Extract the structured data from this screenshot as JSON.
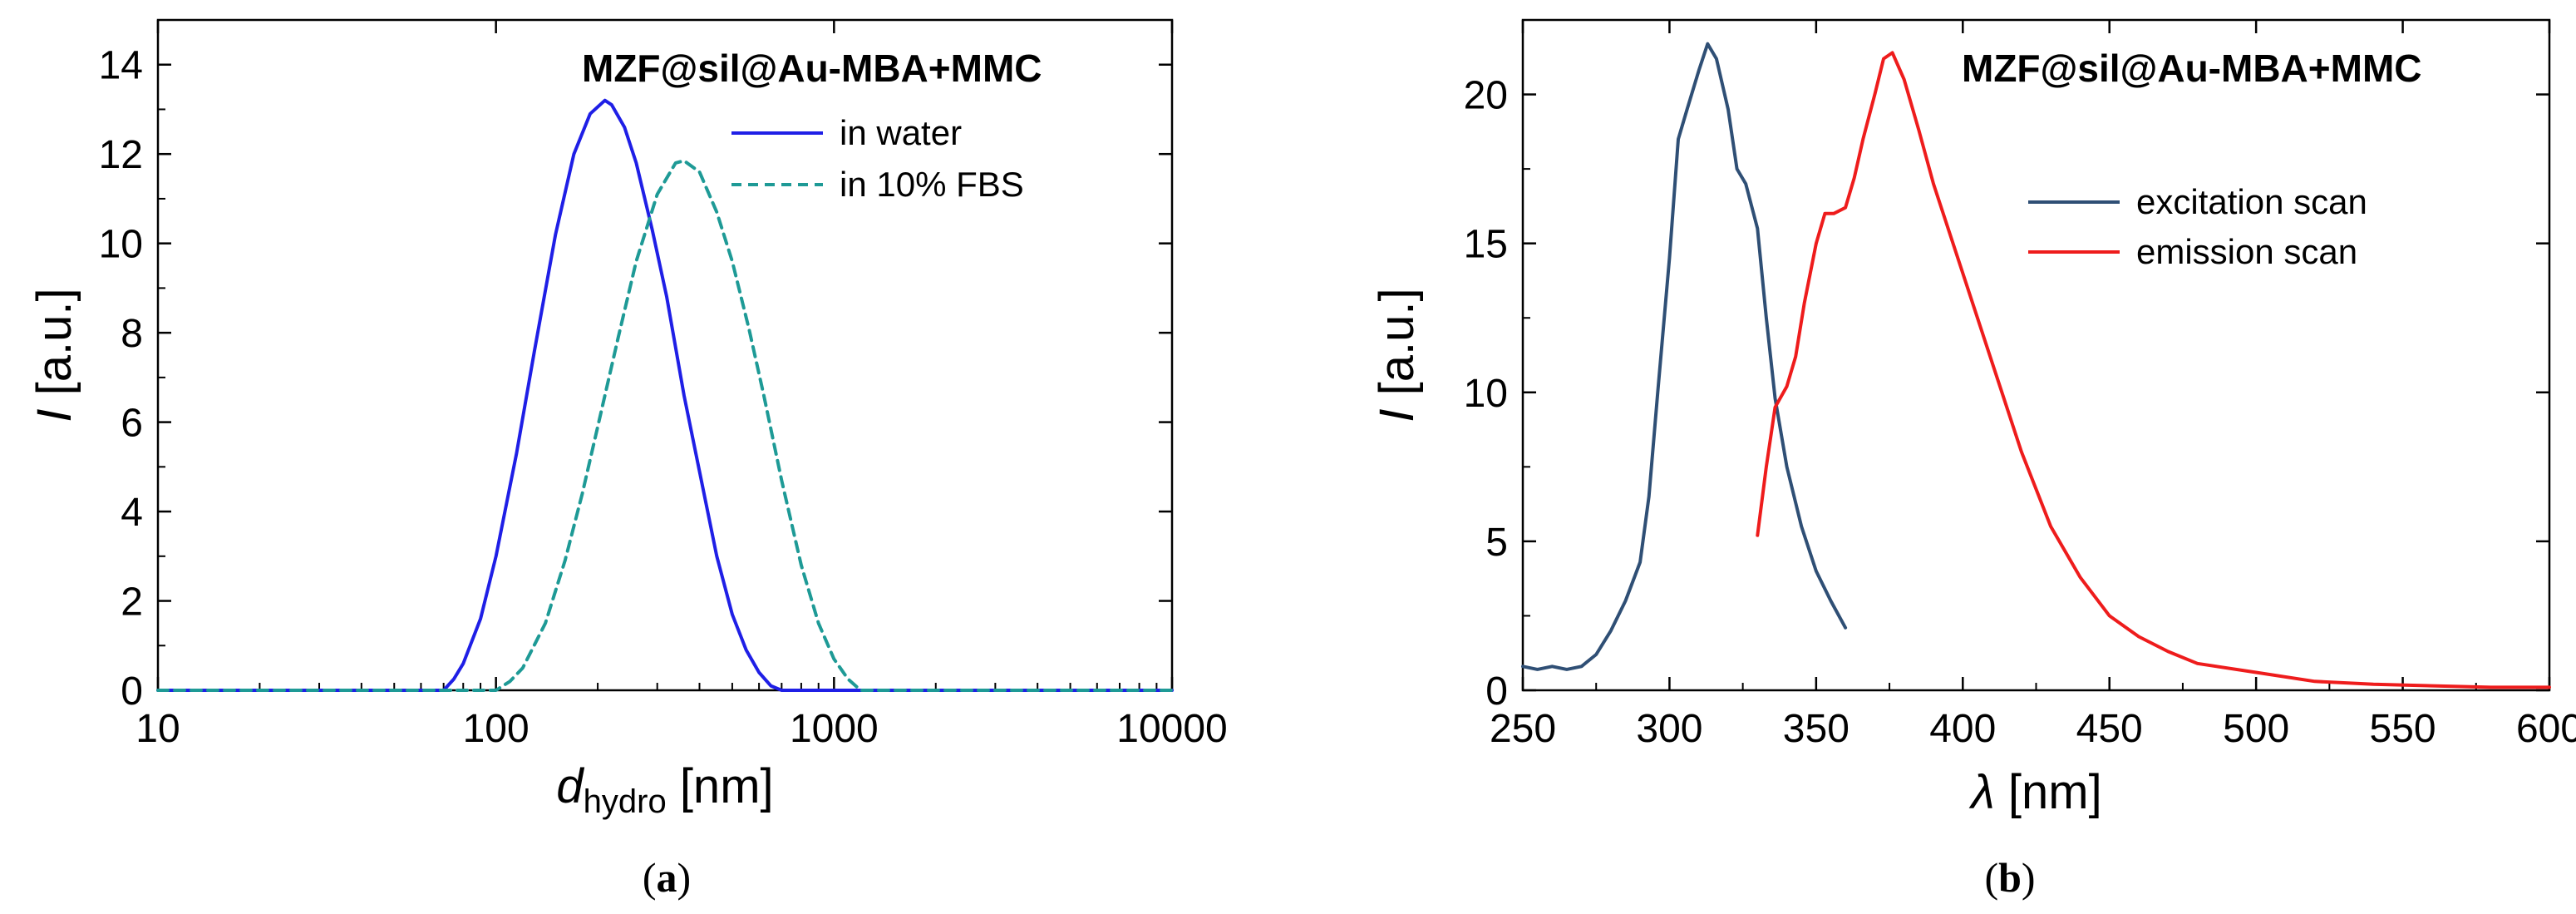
{
  "colors": {
    "water": "#1f1fe6",
    "fbs": "#1e9a96",
    "excitation": "#2f4f75",
    "emission": "#ee1c1c",
    "axis": "#000000"
  },
  "chart_data": [
    {
      "type": "line",
      "panel": "a",
      "caption": "(a)",
      "caption_open": "(",
      "caption_letter": "a",
      "caption_close": ")",
      "title": "MZF@sil@Au-MBA+MMC",
      "xlabel_main": "d",
      "xlabel_sub": "hydro",
      "xlabel_unit": " [nm]",
      "ylabel_main": "I",
      "ylabel_unit": " [a.u.]",
      "xscale": "log",
      "xlim": [
        10,
        10000
      ],
      "ylim": [
        0,
        15
      ],
      "xticks": [
        10,
        100,
        1000,
        10000
      ],
      "xtick_labels": [
        "10",
        "100",
        "1000",
        "10000"
      ],
      "yticks": [
        0,
        2,
        4,
        6,
        8,
        10,
        12,
        14
      ],
      "ytick_labels": [
        "0",
        "2",
        "4",
        "6",
        "8",
        "10",
        "12",
        "14"
      ],
      "legend_position": "top-right",
      "series": [
        {
          "name": "in water",
          "style": "solid",
          "color_key": "water",
          "x": [
            10,
            50,
            70,
            75,
            80,
            90,
            100,
            115,
            130,
            150,
            170,
            190,
            210,
            220,
            240,
            260,
            290,
            320,
            360,
            400,
            450,
            500,
            550,
            600,
            650,
            700,
            1000,
            10000
          ],
          "y": [
            0,
            0,
            0,
            0.25,
            0.6,
            1.6,
            3.0,
            5.3,
            7.6,
            10.2,
            12.0,
            12.9,
            13.2,
            13.1,
            12.6,
            11.8,
            10.3,
            8.8,
            6.6,
            4.9,
            3.0,
            1.7,
            0.9,
            0.4,
            0.1,
            0,
            0,
            0
          ]
        },
        {
          "name": "in 10% FBS",
          "style": "dashed",
          "color_key": "fbs",
          "x": [
            10,
            80,
            100,
            110,
            120,
            140,
            160,
            180,
            200,
            230,
            260,
            300,
            340,
            360,
            400,
            450,
            500,
            560,
            620,
            700,
            800,
            900,
            1000,
            1100,
            1200,
            2000,
            10000
          ],
          "y": [
            0,
            0,
            0,
            0.2,
            0.5,
            1.5,
            2.9,
            4.4,
            5.9,
            7.9,
            9.6,
            11.1,
            11.8,
            11.85,
            11.6,
            10.7,
            9.6,
            8.1,
            6.6,
            4.7,
            2.8,
            1.5,
            0.7,
            0.25,
            0,
            0,
            0
          ]
        }
      ]
    },
    {
      "type": "line",
      "panel": "b",
      "caption": "(b)",
      "caption_open": "(",
      "caption_letter": "b",
      "caption_close": ")",
      "title": "MZF@sil@Au-MBA+MMC",
      "xlabel_main": "λ",
      "xlabel_unit": " [nm]",
      "ylabel_main": "I",
      "ylabel_unit": " [a.u.]",
      "xscale": "linear",
      "xlim": [
        250,
        600
      ],
      "ylim": [
        0,
        22.5
      ],
      "xticks": [
        250,
        300,
        350,
        400,
        450,
        500,
        550,
        600
      ],
      "xtick_labels": [
        "250",
        "300",
        "350",
        "400",
        "450",
        "500",
        "550",
        "600"
      ],
      "yticks": [
        0,
        5,
        10,
        15,
        20
      ],
      "ytick_labels": [
        "0",
        "5",
        "10",
        "15",
        "20"
      ],
      "legend_position": "top-right",
      "series": [
        {
          "name": "excitation scan",
          "style": "solid",
          "color_key": "excitation",
          "x": [
            250,
            255,
            260,
            265,
            270,
            275,
            280,
            285,
            290,
            293,
            296,
            300,
            303,
            306,
            310,
            313,
            316,
            320,
            323,
            326,
            330,
            333,
            336,
            340,
            345,
            350,
            355,
            360
          ],
          "y": [
            0.8,
            0.7,
            0.8,
            0.7,
            0.8,
            1.2,
            2.0,
            3.0,
            4.3,
            6.5,
            10.0,
            14.5,
            18.5,
            19.5,
            20.8,
            21.7,
            21.2,
            19.5,
            17.5,
            17.0,
            15.5,
            12.5,
            9.8,
            7.5,
            5.5,
            4.0,
            3.0,
            2.1
          ]
        },
        {
          "name": "emission scan",
          "style": "solid",
          "color_key": "emission",
          "x": [
            330,
            333,
            336,
            340,
            343,
            346,
            350,
            353,
            356,
            360,
            363,
            366,
            370,
            373,
            376,
            380,
            385,
            390,
            400,
            410,
            420,
            430,
            440,
            450,
            460,
            470,
            480,
            500,
            520,
            540,
            560,
            580,
            600
          ],
          "y": [
            5.2,
            7.5,
            9.5,
            10.2,
            11.2,
            13.0,
            15.0,
            16.0,
            16.0,
            16.2,
            17.2,
            18.5,
            20.0,
            21.2,
            21.4,
            20.5,
            18.8,
            17.0,
            14.0,
            11.0,
            8.0,
            5.5,
            3.8,
            2.5,
            1.8,
            1.3,
            0.9,
            0.6,
            0.3,
            0.2,
            0.15,
            0.1,
            0.1
          ]
        }
      ]
    }
  ]
}
